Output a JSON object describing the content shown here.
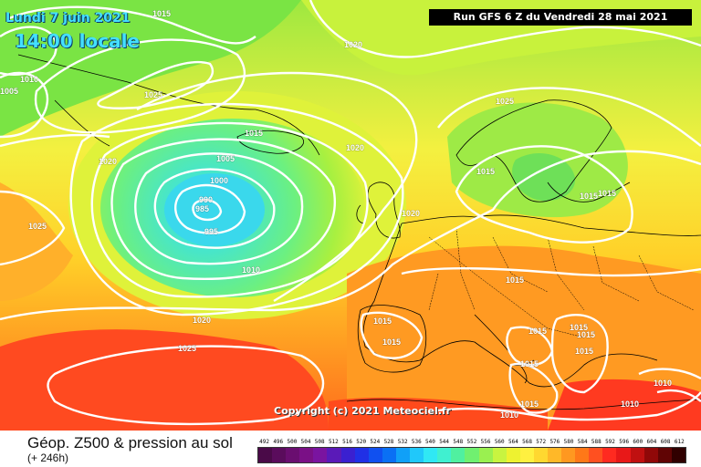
{
  "header": {
    "date": "Lundi 7 juin 2021",
    "time": "14:00 locale",
    "run": "Run GFS 6 Z du Vendredi 28 mai 2021"
  },
  "copyright": "Copyright (c) 2021 Meteociel.fr",
  "footer": {
    "title": "Géop. Z500 & pression au sol",
    "subtitle": "(+ 246h)"
  },
  "legend": {
    "values": [
      "492",
      "496",
      "500",
      "504",
      "508",
      "512",
      "516",
      "520",
      "524",
      "528",
      "532",
      "536",
      "540",
      "544",
      "548",
      "552",
      "556",
      "560",
      "564",
      "568",
      "572",
      "576",
      "580",
      "584",
      "588",
      "592",
      "596",
      "600",
      "604",
      "608",
      "612"
    ],
    "colors": [
      "#4a0a48",
      "#5a0c5c",
      "#6a0e70",
      "#7a1086",
      "#7a14a0",
      "#5a1ab8",
      "#3a20d0",
      "#2030e6",
      "#1050f0",
      "#0a70f4",
      "#10a0f8",
      "#20c8fa",
      "#30e8f4",
      "#40f0d0",
      "#50f0a0",
      "#70f070",
      "#9af050",
      "#c8f440",
      "#eef230",
      "#fff040",
      "#ffd830",
      "#ffb828",
      "#ff9820",
      "#ff7818",
      "#ff5020",
      "#ff2a20",
      "#e81818",
      "#c01010",
      "#900808",
      "#600404",
      "#300000"
    ]
  },
  "isobars": [
    {
      "id": "1015-top",
      "label": "1015"
    },
    {
      "id": "1010-nw",
      "label": "1010"
    },
    {
      "id": "1005-w",
      "label": "1005"
    },
    {
      "id": "1025-gl",
      "label": "1025"
    },
    {
      "id": "1020-n",
      "label": "1020"
    },
    {
      "id": "1020-w",
      "label": "1020"
    },
    {
      "id": "1015-low",
      "label": "1015"
    },
    {
      "id": "1005-low",
      "label": "1005"
    },
    {
      "id": "1000",
      "label": "1000"
    },
    {
      "id": "990",
      "label": "990"
    },
    {
      "id": "985",
      "label": "985"
    },
    {
      "id": "995",
      "label": "995"
    },
    {
      "id": "1010-low",
      "label": "1010"
    },
    {
      "id": "1020-mid",
      "label": "1020"
    },
    {
      "id": "1025-sw",
      "label": "1025"
    },
    {
      "id": "1025-w",
      "label": "1025"
    },
    {
      "id": "1020-s",
      "label": "1020"
    },
    {
      "id": "1020-uk",
      "label": "1020"
    },
    {
      "id": "1025-sc",
      "label": "1025"
    },
    {
      "id": "1015-sc",
      "label": "1015"
    },
    {
      "id": "1015-ru-a",
      "label": "1015"
    },
    {
      "id": "1015-ru-b",
      "label": "1015"
    },
    {
      "id": "1015-ce",
      "label": "1015"
    },
    {
      "id": "1015-sp-a",
      "label": "1015"
    },
    {
      "id": "1015-sp-b",
      "label": "1015"
    },
    {
      "id": "1015-it",
      "label": "1015"
    },
    {
      "id": "1015-gr-a",
      "label": "1015"
    },
    {
      "id": "1015-gr-b",
      "label": "1015"
    },
    {
      "id": "1015-gr-c",
      "label": "1015"
    },
    {
      "id": "1015-bk",
      "label": "1015"
    },
    {
      "id": "1015-me",
      "label": "1015"
    },
    {
      "id": "1010-me",
      "label": "1010"
    },
    {
      "id": "1010-af",
      "label": "1010"
    },
    {
      "id": "1010-tr",
      "label": "1010"
    }
  ]
}
